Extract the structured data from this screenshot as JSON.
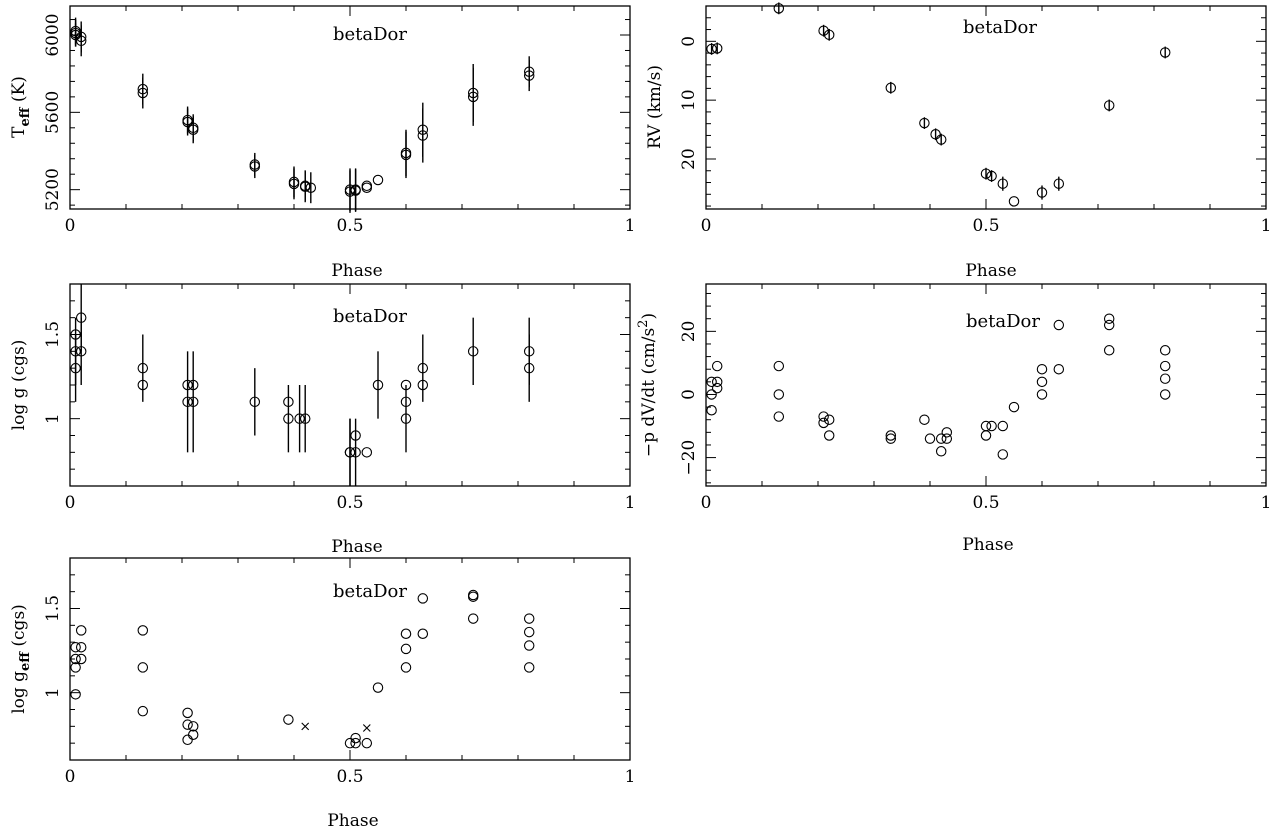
{
  "chart_data": [
    {
      "type": "scatter",
      "title": "betaDor",
      "xlabel": "Phase",
      "ylabel": "T",
      "ylabel_sub": "eff",
      "ylabel_rest": " (K)",
      "xlim": [
        0,
        1
      ],
      "ylim": [
        5100,
        6150
      ],
      "yreverse": false,
      "xticks": [
        "0",
        "0.5",
        "1"
      ],
      "yticks": [
        "5200",
        "5600",
        "6000"
      ],
      "series": [
        {
          "marker": "circle",
          "x": [
            0.01,
            0.01,
            0.01,
            0.02,
            0.02,
            0.13,
            0.13,
            0.21,
            0.21,
            0.22,
            0.22,
            0.33,
            0.33,
            0.4,
            0.4,
            0.42,
            0.42,
            0.43,
            0.5,
            0.5,
            0.51,
            0.51,
            0.53,
            0.53,
            0.55,
            0.6,
            0.6,
            0.63,
            0.63,
            0.72,
            0.72,
            0.82,
            0.82
          ],
          "y": [
            6010,
            6020,
            6000,
            5990,
            5970,
            5720,
            5700,
            5560,
            5550,
            5520,
            5510,
            5330,
            5320,
            5240,
            5230,
            5220,
            5215,
            5210,
            5200,
            5190,
            5200,
            5195,
            5220,
            5210,
            5250,
            5390,
            5380,
            5510,
            5480,
            5700,
            5680,
            5810,
            5790
          ],
          "err": [
            70,
            70,
            60,
            80,
            80,
            80,
            80,
            70,
            70,
            70,
            70,
            60,
            60,
            80,
            80,
            80,
            80,
            80,
            110,
            110,
            110,
            110,
            0,
            0,
            0,
            120,
            120,
            140,
            140,
            150,
            150,
            80,
            80
          ]
        }
      ]
    },
    {
      "type": "scatter",
      "title": "betaDor",
      "xlabel": "Phase",
      "ylabel": "RV (km/s)",
      "xlim": [
        0,
        1
      ],
      "ylim": [
        -6,
        28.5
      ],
      "yreverse": true,
      "xticks": [
        "0",
        "0.5",
        "1"
      ],
      "yticks": [
        "0",
        "10",
        "20"
      ],
      "series": [
        {
          "marker": "circle",
          "x": [
            0.01,
            0.02,
            0.13,
            0.21,
            0.22,
            0.33,
            0.39,
            0.41,
            0.42,
            0.5,
            0.51,
            0.53,
            0.55,
            0.6,
            0.63,
            0.72,
            0.82
          ],
          "y": [
            1.3,
            1.2,
            -5.6,
            -1.8,
            -1.1,
            7.9,
            13.9,
            15.8,
            16.7,
            22.5,
            22.9,
            24.2,
            27.2,
            25.7,
            24.2,
            10.9,
            1.9
          ],
          "err": [
            1,
            1,
            1,
            1,
            1,
            1,
            1,
            1,
            1,
            1,
            1,
            1.2,
            0,
            1.2,
            1.2,
            1,
            1
          ]
        }
      ]
    },
    {
      "type": "scatter",
      "title": "betaDor",
      "xlabel": "Phase",
      "ylabel": "log g (cgs)",
      "xlim": [
        0,
        1
      ],
      "ylim": [
        0.6,
        1.8
      ],
      "yreverse": false,
      "xticks": [
        "0",
        "0.5",
        "1"
      ],
      "yticks": [
        "1",
        "1.5"
      ],
      "series": [
        {
          "marker": "circle",
          "x": [
            0.01,
            0.01,
            0.01,
            0.02,
            0.02,
            0.13,
            0.13,
            0.21,
            0.21,
            0.22,
            0.22,
            0.33,
            0.39,
            0.39,
            0.41,
            0.42,
            0.5,
            0.5,
            0.51,
            0.51,
            0.53,
            0.55,
            0.6,
            0.6,
            0.6,
            0.63,
            0.63,
            0.72,
            0.82,
            0.82
          ],
          "y": [
            1.5,
            1.4,
            1.3,
            1.6,
            1.4,
            1.3,
            1.2,
            1.2,
            1.1,
            1.2,
            1.1,
            1.1,
            1.1,
            1.0,
            1.0,
            1.0,
            0.8,
            0.8,
            0.9,
            0.8,
            0.8,
            1.2,
            1.2,
            1.1,
            1.0,
            1.3,
            1.2,
            1.4,
            1.4,
            1.3
          ],
          "err": [
            0,
            0.2,
            0.2,
            0.2,
            0.2,
            0.2,
            0,
            0,
            0.3,
            0,
            0.3,
            0.2,
            0,
            0.2,
            0.2,
            0.2,
            0.2,
            0.2,
            0,
            0.2,
            0,
            0.2,
            0,
            0,
            0.2,
            0.2,
            0,
            0.2,
            0.2,
            0.2
          ]
        }
      ]
    },
    {
      "type": "scatter",
      "title": "betaDor",
      "xlabel": "Phase",
      "ylabel": "−p dV/dt (cm/s",
      "ylabel_sup": "2",
      "ylabel_rest": ")",
      "xlim": [
        0,
        1
      ],
      "ylim": [
        -29,
        35
      ],
      "yreverse": false,
      "xticks": [
        "0",
        "0.5",
        "1"
      ],
      "yticks": [
        "−20",
        "0",
        "20"
      ],
      "series": [
        {
          "marker": "circle",
          "x": [
            0.01,
            0.01,
            0.01,
            0.02,
            0.02,
            0.02,
            0.13,
            0.13,
            0.13,
            0.21,
            0.21,
            0.22,
            0.22,
            0.33,
            0.33,
            0.39,
            0.4,
            0.42,
            0.42,
            0.43,
            0.43,
            0.5,
            0.5,
            0.51,
            0.53,
            0.53,
            0.55,
            0.6,
            0.6,
            0.6,
            0.63,
            0.63,
            0.72,
            0.72,
            0.72,
            0.82,
            0.82,
            0.82,
            0.82
          ],
          "y": [
            -5,
            0,
            4,
            2,
            4,
            9,
            9,
            0,
            -7,
            -7,
            -9,
            -8,
            -13,
            -13,
            -14,
            -8,
            -14,
            -14,
            -18,
            -12,
            -14,
            -10,
            -13,
            -10,
            -10,
            -19,
            -4,
            8,
            4,
            0,
            22,
            8,
            24,
            22,
            14,
            14,
            9,
            5,
            0
          ]
        }
      ]
    },
    {
      "type": "scatter",
      "title": "betaDor",
      "xlabel": "Phase",
      "ylabel": "log g",
      "ylabel_sub": "eff",
      "ylabel_rest": " (cgs)",
      "xlim": [
        0,
        1
      ],
      "ylim": [
        0.6,
        1.8
      ],
      "yreverse": false,
      "xticks": [
        "0",
        "0.5",
        "1"
      ],
      "yticks": [
        "1",
        "1.5"
      ],
      "series": [
        {
          "marker": "circle",
          "x": [
            0.01,
            0.01,
            0.01,
            0.01,
            0.02,
            0.02,
            0.02,
            0.13,
            0.13,
            0.13,
            0.21,
            0.21,
            0.21,
            0.22,
            0.22,
            0.39,
            0.5,
            0.51,
            0.51,
            0.53,
            0.55,
            0.6,
            0.6,
            0.6,
            0.63,
            0.63,
            0.72,
            0.72,
            0.72,
            0.82,
            0.82,
            0.82,
            0.82
          ],
          "y": [
            1.27,
            1.2,
            1.15,
            0.99,
            1.37,
            1.27,
            1.2,
            1.37,
            1.15,
            0.89,
            0.88,
            0.81,
            0.72,
            0.8,
            0.75,
            0.84,
            0.7,
            0.73,
            0.7,
            0.7,
            1.03,
            1.35,
            1.26,
            1.15,
            1.56,
            1.35,
            1.58,
            1.57,
            1.44,
            1.44,
            1.36,
            1.28,
            1.15
          ]
        },
        {
          "marker": "x",
          "x": [
            0.42,
            0.53
          ],
          "y": [
            0.8,
            0.79
          ]
        }
      ]
    }
  ]
}
